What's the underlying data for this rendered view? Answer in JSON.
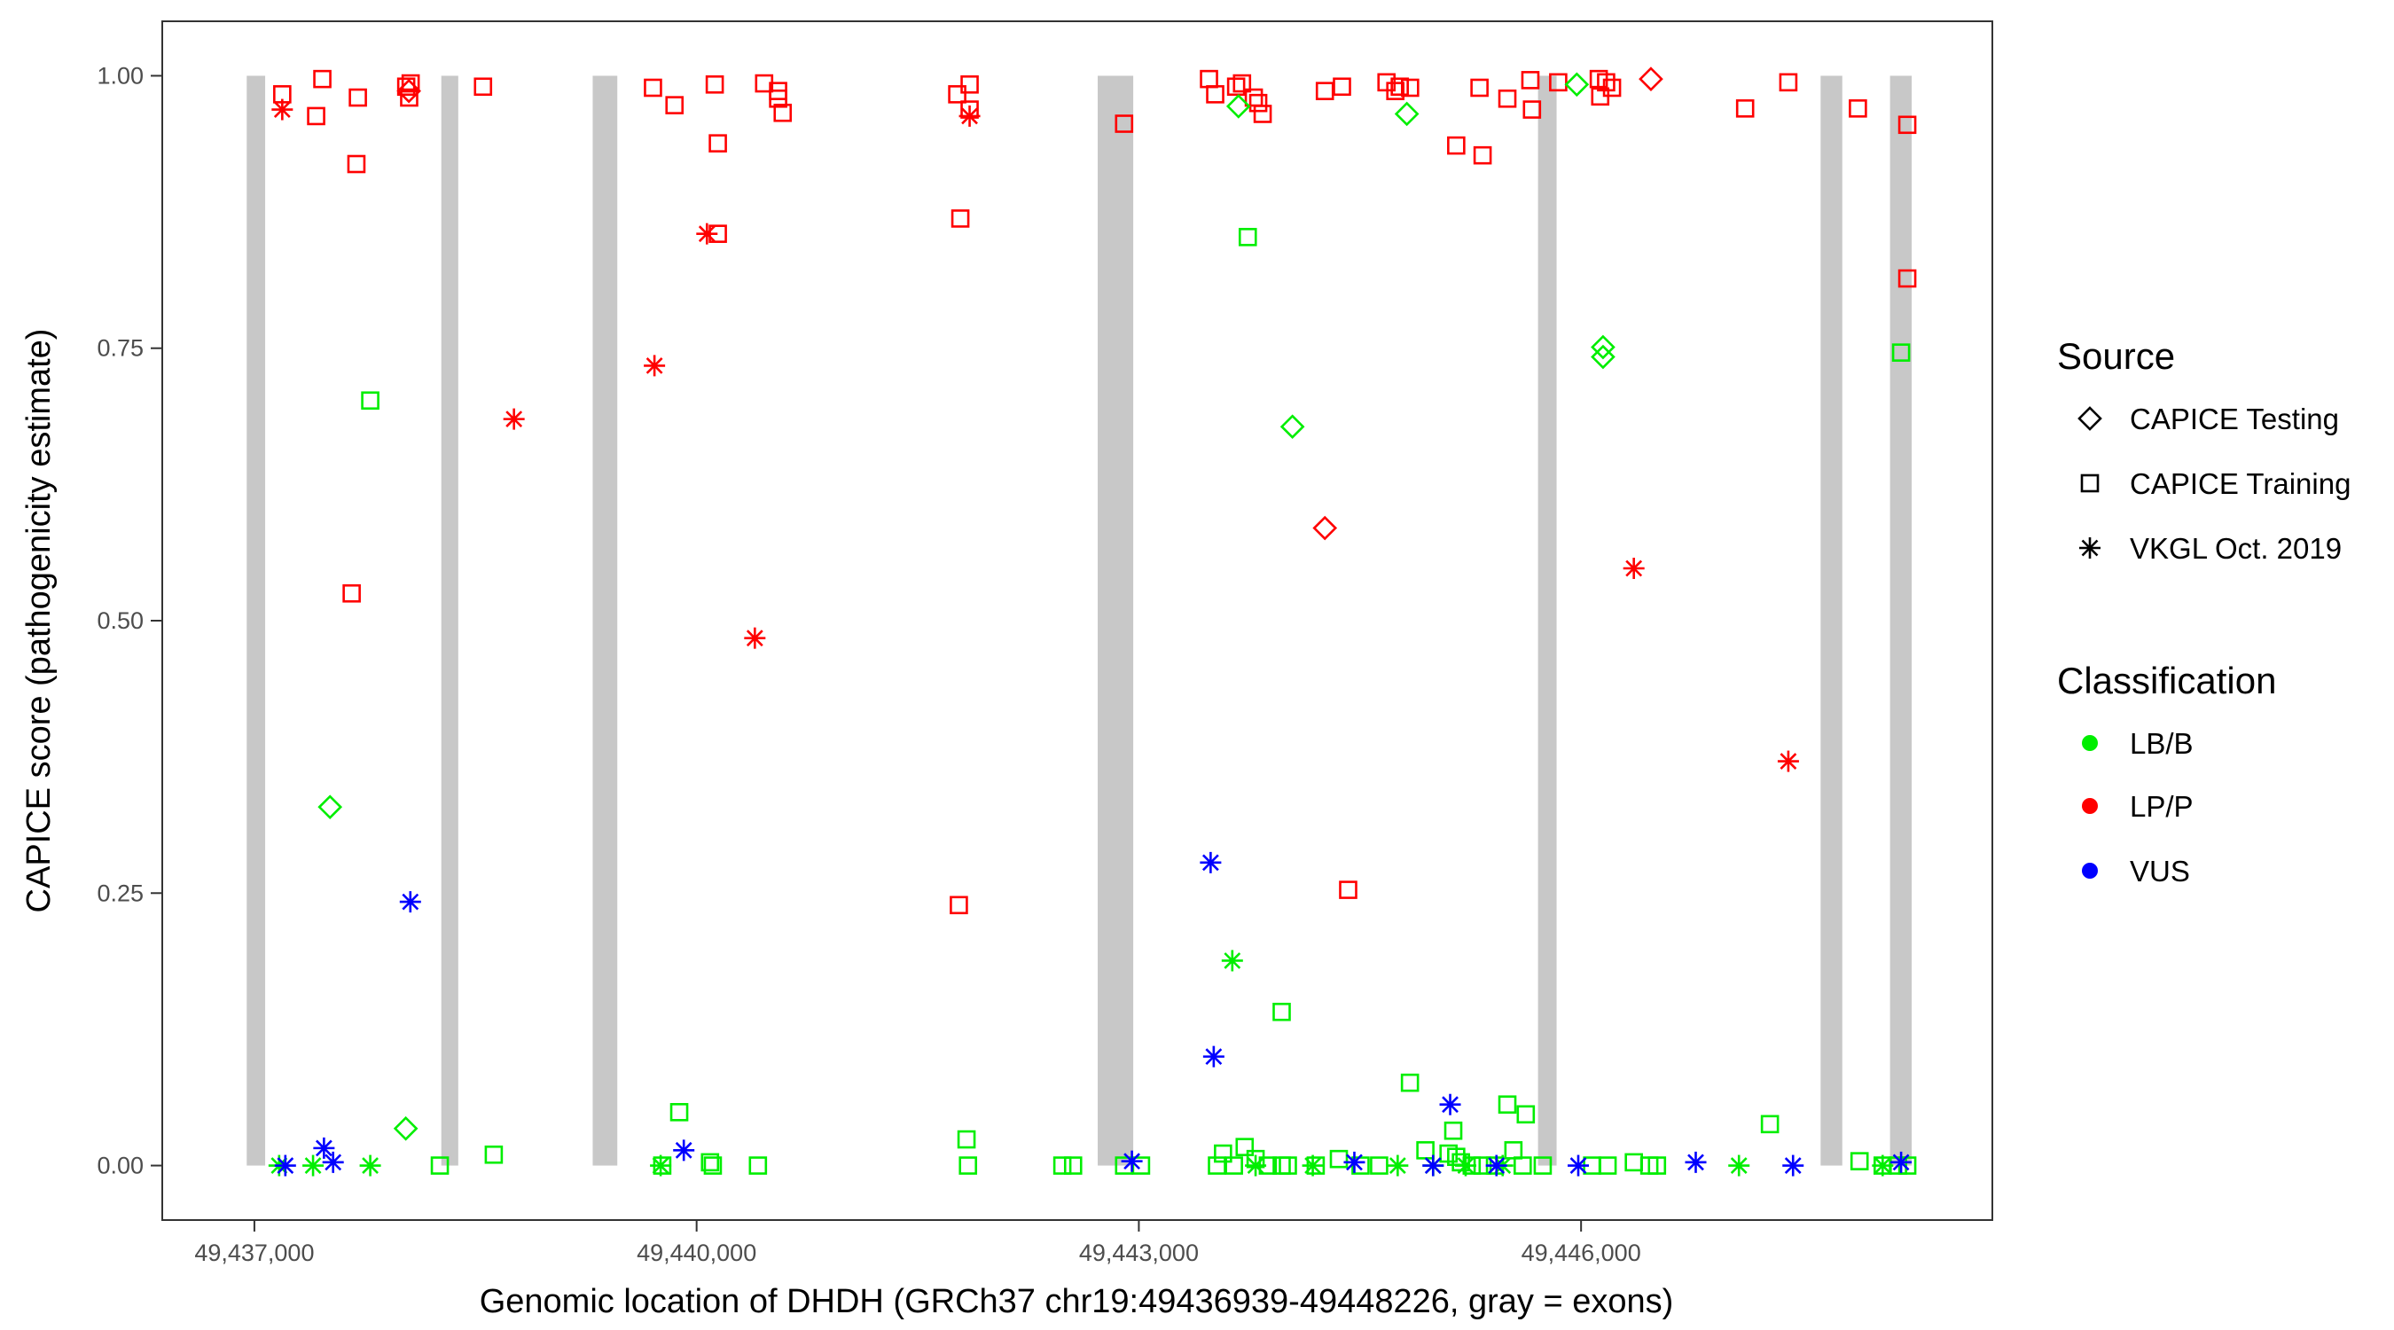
{
  "chart_data": {
    "type": "scatter",
    "xlabel": "Genomic location of DHDH (GRCh37 chr19:49436939-49448226, gray = exons)",
    "ylabel": "CAPICE score (pathogenicity estimate)",
    "xlim": [
      49436375,
      49448790
    ],
    "ylim": [
      -0.05,
      1.05
    ],
    "x_ticks": [
      49437000,
      49440000,
      49443000,
      49446000
    ],
    "x_tick_labels": [
      "49,437,000",
      "49,440,000",
      "49,443,000",
      "49,446,000"
    ],
    "y_ticks": [
      0,
      0.25,
      0.5,
      0.75,
      1
    ],
    "y_tick_labels": [
      "0.00",
      "0.25",
      "0.50",
      "0.75",
      "1.00"
    ],
    "grid": false,
    "exons": [
      [
        49436948,
        49437073
      ],
      [
        49438268,
        49438383
      ],
      [
        49439295,
        49439462
      ],
      [
        49442721,
        49442962
      ],
      [
        49445708,
        49445834
      ],
      [
        49447625,
        49447772
      ],
      [
        49448096,
        49448243
      ]
    ],
    "exon_color": "#c8c8c8",
    "legend": {
      "placement": "right",
      "source_title": "Source",
      "source_items": [
        {
          "key": "testing",
          "label": "CAPICE Testing",
          "shape": "diamond"
        },
        {
          "key": "training",
          "label": "CAPICE Training",
          "shape": "square"
        },
        {
          "key": "vkgl",
          "label": "VKGL Oct. 2019",
          "shape": "asterisk"
        }
      ],
      "class_title": "Classification",
      "class_items": [
        {
          "key": "lbb",
          "label": "LB/B",
          "color": "#00ee00"
        },
        {
          "key": "lpp",
          "label": "LP/P",
          "color": "#ff0000"
        },
        {
          "key": "vus",
          "label": "VUS",
          "color": "#0000ff"
        }
      ]
    },
    "series": [
      {
        "source": "training",
        "classification": "lpp",
        "points": [
          [
            49437189,
            0.983
          ],
          [
            49437419,
            0.963
          ],
          [
            49437461,
            0.997
          ],
          [
            49437702,
            0.98
          ],
          [
            49437692,
            0.919
          ],
          [
            49438030,
            0.99
          ],
          [
            49438050,
            0.98
          ],
          [
            49438060,
            0.993
          ],
          [
            49437660,
            0.525
          ],
          [
            49438551,
            0.99
          ],
          [
            49439704,
            0.989
          ],
          [
            49439850,
            0.973
          ],
          [
            49440123,
            0.992
          ],
          [
            49440144,
            0.938
          ],
          [
            49440144,
            0.855
          ],
          [
            49440458,
            0.993
          ],
          [
            49440553,
            0.986
          ],
          [
            49440553,
            0.979
          ],
          [
            49440584,
            0.966
          ],
          [
            49441768,
            0.983
          ],
          [
            49441852,
            0.992
          ],
          [
            49441852,
            0.969
          ],
          [
            49441789,
            0.869
          ],
          [
            49441779,
            0.239
          ],
          [
            49442900,
            0.956
          ],
          [
            49443476,
            0.997
          ],
          [
            49443518,
            0.983
          ],
          [
            49443660,
            0.99
          ],
          [
            49443700,
            0.993
          ],
          [
            49443780,
            0.98
          ],
          [
            49443810,
            0.975
          ],
          [
            49443840,
            0.965
          ],
          [
            49444262,
            0.986
          ],
          [
            49444378,
            0.99
          ],
          [
            49444680,
            0.994
          ],
          [
            49444740,
            0.986
          ],
          [
            49444770,
            0.99
          ],
          [
            49444840,
            0.989
          ],
          [
            49445153,
            0.936
          ],
          [
            49445311,
            0.989
          ],
          [
            49445332,
            0.927
          ],
          [
            49445500,
            0.979
          ],
          [
            49445656,
            0.996
          ],
          [
            49445667,
            0.969
          ],
          [
            49445845,
            0.994
          ],
          [
            49446120,
            0.997
          ],
          [
            49446170,
            0.994
          ],
          [
            49446130,
            0.981
          ],
          [
            49446210,
            0.989
          ],
          [
            49444420,
            0.253
          ],
          [
            49447113,
            0.97
          ],
          [
            49447406,
            0.994
          ],
          [
            49447878,
            0.97
          ],
          [
            49448213,
            0.955
          ],
          [
            49448213,
            0.814
          ]
        ]
      },
      {
        "source": "vkgl",
        "classification": "lpp",
        "points": [
          [
            49437189,
            0.969
          ],
          [
            49441852,
            0.963
          ],
          [
            49440070,
            0.855
          ],
          [
            49439714,
            0.734
          ],
          [
            49438761,
            0.685
          ],
          [
            49440395,
            0.484
          ],
          [
            49446358,
            0.548
          ],
          [
            49447406,
            0.371
          ]
        ]
      },
      {
        "source": "testing",
        "classification": "lpp",
        "points": [
          [
            49438048,
            0.986
          ],
          [
            49444262,
            0.585
          ],
          [
            49446474,
            0.997
          ]
        ]
      },
      {
        "source": "training",
        "classification": "lbb",
        "points": [
          [
            49437786,
            0.702
          ],
          [
            49439882,
            0.049
          ],
          [
            49438624,
            0.01
          ],
          [
            49438258,
            0.0
          ],
          [
            49440091,
            0.003
          ],
          [
            49440110,
            0.0
          ],
          [
            49440416,
            0.0
          ],
          [
            49439767,
            0.0
          ],
          [
            49441831,
            0.024
          ],
          [
            49441841,
            0.0
          ],
          [
            49442481,
            0.0
          ],
          [
            49442554,
            0.0
          ],
          [
            49442900,
            0.0
          ],
          [
            49443015,
            0.0
          ],
          [
            49443739,
            0.852
          ],
          [
            49443969,
            0.141
          ],
          [
            49443718,
            0.017
          ],
          [
            49443571,
            0.011
          ],
          [
            49443530,
            0.0
          ],
          [
            49443645,
            0.0
          ],
          [
            49443792,
            0.006
          ],
          [
            49443875,
            0.0
          ],
          [
            49443969,
            0.0
          ],
          [
            49444011,
            0.0
          ],
          [
            49444200,
            0.0
          ],
          [
            49444357,
            0.006
          ],
          [
            49444504,
            0.0
          ],
          [
            49444630,
            0.0
          ],
          [
            49444839,
            0.076
          ],
          [
            49444944,
            0.014
          ],
          [
            49445101,
            0.011
          ],
          [
            49445133,
            0.032
          ],
          [
            49445153,
            0.008
          ],
          [
            49445185,
            0.003
          ],
          [
            49445258,
            0.0
          ],
          [
            49445332,
            0.0
          ],
          [
            49445416,
            0.0
          ],
          [
            49445500,
            0.056
          ],
          [
            49445625,
            0.047
          ],
          [
            49445541,
            0.014
          ],
          [
            49445604,
            0.0
          ],
          [
            49445740,
            0.0
          ],
          [
            49446075,
            0.0
          ],
          [
            49446180,
            0.0
          ],
          [
            49446358,
            0.003
          ],
          [
            49446463,
            0.0
          ],
          [
            49446515,
            0.0
          ],
          [
            49447281,
            0.038
          ],
          [
            49447889,
            0.004
          ],
          [
            49448046,
            0.0
          ],
          [
            49448150,
            0.0
          ],
          [
            49448213,
            0.0
          ],
          [
            49448171,
            0.746
          ]
        ]
      },
      {
        "source": "vkgl",
        "classification": "lbb",
        "points": [
          [
            49437168,
            0.0
          ],
          [
            49437398,
            0.0
          ],
          [
            49437786,
            0.0
          ],
          [
            49439756,
            0.0
          ],
          [
            49443634,
            0.188
          ],
          [
            49443792,
            0.0
          ],
          [
            49444180,
            0.0
          ],
          [
            49444756,
            0.0
          ],
          [
            49444997,
            0.0
          ],
          [
            49445217,
            0.0
          ],
          [
            49445468,
            0.0
          ],
          [
            49447071,
            0.0
          ],
          [
            49448046,
            0.0
          ]
        ]
      },
      {
        "source": "testing",
        "classification": "lbb",
        "points": [
          [
            49437513,
            0.329
          ],
          [
            49438027,
            0.034
          ],
          [
            49443676,
            0.972
          ],
          [
            49444042,
            0.678
          ],
          [
            49444818,
            0.965
          ],
          [
            49445971,
            0.992
          ],
          [
            49446149,
            0.751
          ],
          [
            49446149,
            0.742
          ]
        ]
      },
      {
        "source": "vkgl",
        "classification": "vus",
        "points": [
          [
            49438058,
            0.242
          ],
          [
            49437472,
            0.016
          ],
          [
            49437534,
            0.003
          ],
          [
            49437210,
            0.0
          ],
          [
            49439913,
            0.014
          ],
          [
            49442953,
            0.004
          ],
          [
            49443487,
            0.278
          ],
          [
            49443508,
            0.1
          ],
          [
            49444462,
            0.003
          ],
          [
            49445112,
            0.056
          ],
          [
            49444996,
            0.0
          ],
          [
            49445426,
            0.0
          ],
          [
            49445981,
            0.0
          ],
          [
            49446778,
            0.003
          ],
          [
            49447438,
            0.0
          ],
          [
            49448171,
            0.003
          ]
        ]
      }
    ]
  }
}
